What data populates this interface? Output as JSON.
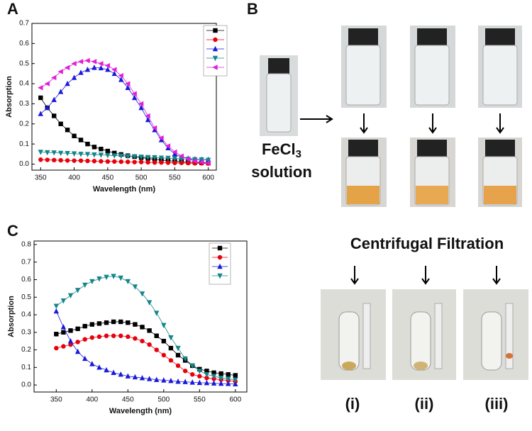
{
  "panels": [
    "A",
    "B",
    "C"
  ],
  "reagent": {
    "base": "FeCl",
    "subscript": "3",
    "line2": "solution"
  },
  "step": "Centrifugal Filtration",
  "samples": [
    "(i)",
    "(ii)",
    "(iii)"
  ],
  "chart_data": [
    {
      "type": "line",
      "x_label": "Wavelength (nm)",
      "y_label": "Absorption",
      "x": [
        350,
        360,
        370,
        380,
        390,
        400,
        410,
        420,
        430,
        440,
        450,
        460,
        470,
        480,
        490,
        500,
        510,
        520,
        530,
        540,
        550,
        560,
        570,
        580,
        590,
        600
      ],
      "xlim": [
        337,
        612
      ],
      "xticks": [
        350,
        400,
        450,
        500,
        550,
        600
      ],
      "ylim": [
        -0.03,
        0.7
      ],
      "yticks": [
        {
          "value": 0,
          "label": "0.0"
        },
        0.1,
        0.2,
        0.3,
        0.4,
        0.5,
        0.6,
        0.7
      ],
      "legend": "upper right",
      "series": [
        {
          "color": "#000000",
          "marker": "square",
          "values": [
            0.33,
            0.28,
            0.24,
            0.2,
            0.17,
            0.14,
            0.12,
            0.1,
            0.085,
            0.075,
            0.065,
            0.055,
            0.048,
            0.042,
            0.037,
            0.032,
            0.028,
            0.024,
            0.02,
            0.017,
            0.014,
            0.012,
            0.01,
            0.008,
            0.006,
            0.005
          ]
        },
        {
          "color": "#e8000b",
          "marker": "circle",
          "values": [
            0.022,
            0.021,
            0.02,
            0.019,
            0.018,
            0.017,
            0.017,
            0.016,
            0.015,
            0.014,
            0.013,
            0.013,
            0.012,
            0.011,
            0.01,
            0.01,
            0.009,
            0.008,
            0.008,
            0.007,
            0.006,
            0.006,
            0.005,
            0.004,
            0.004,
            0.003
          ]
        },
        {
          "color": "#1a1adb",
          "marker": "triangle-up",
          "values": [
            0.25,
            0.28,
            0.32,
            0.36,
            0.4,
            0.43,
            0.455,
            0.47,
            0.48,
            0.478,
            0.47,
            0.45,
            0.42,
            0.38,
            0.33,
            0.28,
            0.22,
            0.17,
            0.12,
            0.08,
            0.05,
            0.035,
            0.028,
            0.025,
            0.023,
            0.022
          ]
        },
        {
          "color": "#14868a",
          "marker": "triangle-down",
          "values": [
            0.06,
            0.058,
            0.057,
            0.055,
            0.054,
            0.052,
            0.05,
            0.049,
            0.047,
            0.046,
            0.044,
            0.042,
            0.041,
            0.039,
            0.038,
            0.036,
            0.034,
            0.033,
            0.031,
            0.03,
            0.028,
            0.026,
            0.025,
            0.023,
            0.022,
            0.02
          ]
        },
        {
          "color": "#e020d8",
          "marker": "triangle-left",
          "values": [
            0.38,
            0.4,
            0.43,
            0.46,
            0.48,
            0.5,
            0.51,
            0.515,
            0.51,
            0.5,
            0.49,
            0.47,
            0.44,
            0.4,
            0.35,
            0.3,
            0.24,
            0.18,
            0.13,
            0.09,
            0.06,
            0.04,
            0.025,
            0.015,
            0.01,
            0.005
          ]
        }
      ]
    },
    {
      "type": "line",
      "x_label": "Wavelength (nm)",
      "y_label": "Absorption",
      "x": [
        350,
        360,
        370,
        380,
        390,
        400,
        410,
        420,
        430,
        440,
        450,
        460,
        470,
        480,
        490,
        500,
        510,
        520,
        530,
        540,
        550,
        560,
        570,
        580,
        590,
        600
      ],
      "xlim": [
        319,
        616
      ],
      "xticks": [
        350,
        400,
        450,
        500,
        550,
        600
      ],
      "ylim": [
        -0.04,
        0.82
      ],
      "yticks": [
        {
          "value": 0,
          "label": "0.0"
        },
        0.1,
        0.2,
        0.3,
        0.4,
        0.5,
        0.6,
        0.7,
        0.8
      ],
      "legend": "upper right",
      "series": [
        {
          "color": "#000000",
          "marker": "square",
          "values": [
            0.29,
            0.3,
            0.31,
            0.32,
            0.335,
            0.345,
            0.35,
            0.355,
            0.36,
            0.36,
            0.355,
            0.345,
            0.33,
            0.31,
            0.28,
            0.25,
            0.21,
            0.17,
            0.14,
            0.11,
            0.09,
            0.08,
            0.07,
            0.065,
            0.06,
            0.055
          ]
        },
        {
          "color": "#e8000b",
          "marker": "circle",
          "values": [
            0.21,
            0.22,
            0.23,
            0.245,
            0.26,
            0.27,
            0.275,
            0.28,
            0.28,
            0.28,
            0.275,
            0.265,
            0.25,
            0.23,
            0.2,
            0.17,
            0.14,
            0.11,
            0.08,
            0.06,
            0.05,
            0.04,
            0.035,
            0.03,
            0.025,
            0.02
          ]
        },
        {
          "color": "#1a1adb",
          "marker": "triangle-up",
          "values": [
            0.42,
            0.33,
            0.25,
            0.19,
            0.15,
            0.12,
            0.1,
            0.085,
            0.07,
            0.06,
            0.05,
            0.045,
            0.04,
            0.035,
            0.03,
            0.027,
            0.024,
            0.02,
            0.018,
            0.015,
            0.013,
            0.012,
            0.01,
            0.008,
            0.007,
            0.005
          ]
        },
        {
          "color": "#14868a",
          "marker": "triangle-down",
          "values": [
            0.45,
            0.48,
            0.51,
            0.54,
            0.57,
            0.59,
            0.605,
            0.615,
            0.62,
            0.61,
            0.59,
            0.56,
            0.52,
            0.47,
            0.41,
            0.34,
            0.27,
            0.21,
            0.15,
            0.11,
            0.08,
            0.06,
            0.05,
            0.04,
            0.035,
            0.03
          ]
        }
      ]
    }
  ]
}
